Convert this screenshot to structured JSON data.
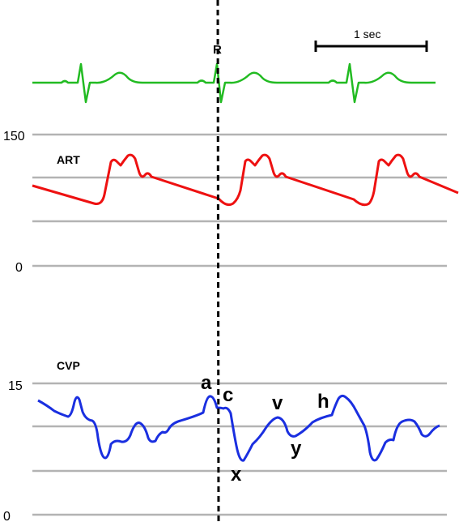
{
  "time_scale": {
    "label": "1 sec"
  },
  "ecg": {
    "r_label": "R",
    "color": "#22bb22"
  },
  "art": {
    "label": "ART",
    "color": "#ee1111",
    "scale_top": "150",
    "scale_bottom": "0"
  },
  "cvp": {
    "label": "CVP",
    "color": "#1a2fe0",
    "scale_top": "15",
    "scale_bottom": "0",
    "waves": {
      "a": "a",
      "c": "c",
      "x": "x",
      "v": "v",
      "y": "y",
      "h": "h"
    }
  },
  "gridline_color": "#b3b3b3"
}
